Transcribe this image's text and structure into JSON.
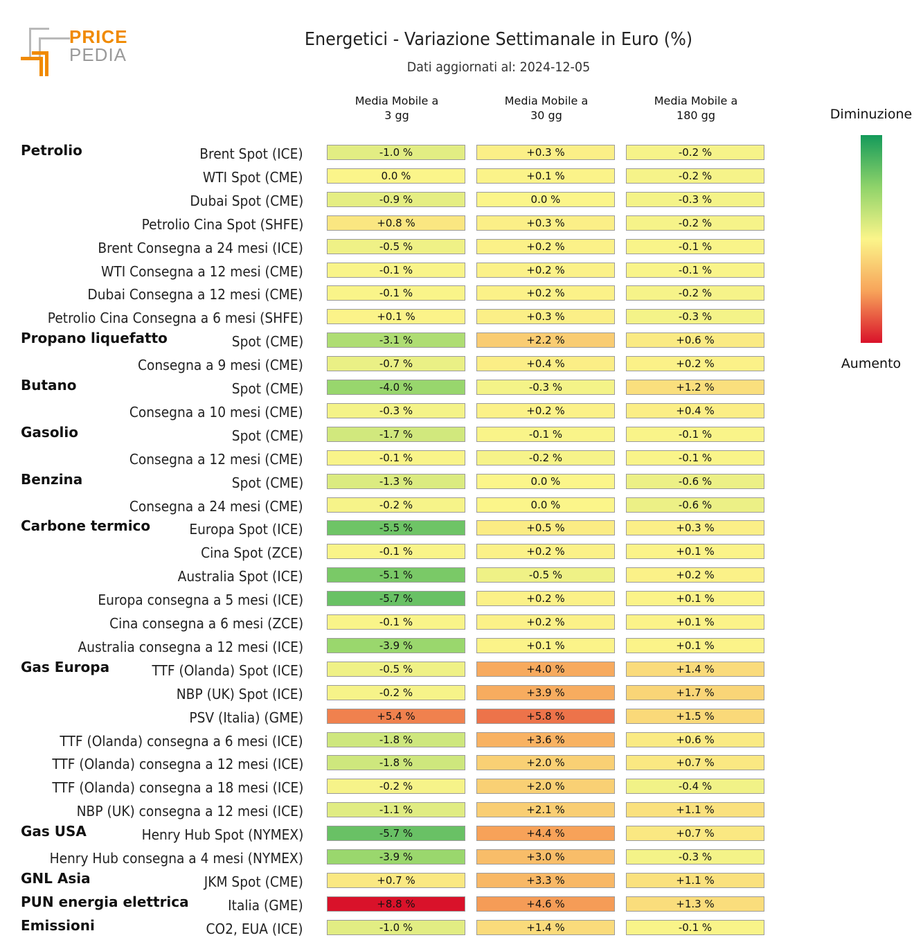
{
  "logo": {
    "line1": "PRICE",
    "line2": "PEDIA"
  },
  "chart_data": {
    "type": "table",
    "title": "Energetici - Variazione Settimanale in Euro (%)",
    "subtitle": "Dati aggiornati al: 2024-12-05",
    "columns": [
      "Media Mobile a 3 gg",
      "Media Mobile a 30 gg",
      "Media Mobile a 180 gg"
    ],
    "column_lines": [
      [
        "Media Mobile a",
        "3 gg"
      ],
      [
        "Media Mobile a",
        "30 gg"
      ],
      [
        "Media Mobile a",
        "180 gg"
      ]
    ],
    "legend": {
      "top": "Diminuzione",
      "bottom": "Aumento",
      "colors": [
        "#149a5a",
        "#8fd36a",
        "#fbf58a",
        "#f7a45a",
        "#d9122a"
      ]
    },
    "rows": [
      {
        "group": "Petrolio",
        "label": "Brent Spot (ICE)",
        "values": [
          "-1.0 %",
          "+0.3 %",
          "-0.2 %"
        ]
      },
      {
        "group": "",
        "label": "WTI Spot (CME)",
        "values": [
          "0.0 %",
          "+0.1 %",
          "-0.2 %"
        ]
      },
      {
        "group": "",
        "label": "Dubai Spot (CME)",
        "values": [
          "-0.9 %",
          "0.0 %",
          "-0.3 %"
        ]
      },
      {
        "group": "",
        "label": "Petrolio Cina Spot (SHFE)",
        "values": [
          "+0.8 %",
          "+0.3 %",
          "-0.2 %"
        ]
      },
      {
        "group": "",
        "label": "Brent Consegna a 24 mesi (ICE)",
        "values": [
          "-0.5 %",
          "+0.2 %",
          "-0.1 %"
        ]
      },
      {
        "group": "",
        "label": "WTI Consegna a 12 mesi (CME)",
        "values": [
          "-0.1 %",
          "+0.2 %",
          "-0.1 %"
        ]
      },
      {
        "group": "",
        "label": "Dubai Consegna a 12 mesi (CME)",
        "values": [
          "-0.1 %",
          "+0.2 %",
          "-0.2 %"
        ]
      },
      {
        "group": "",
        "label": "Petrolio Cina Consegna a 6 mesi (SHFE)",
        "values": [
          "+0.1 %",
          "+0.3 %",
          "-0.3 %"
        ]
      },
      {
        "group": "Propano liquefatto",
        "label": "Spot (CME)",
        "values": [
          "-3.1 %",
          "+2.2 %",
          "+0.6 %"
        ]
      },
      {
        "group": "",
        "label": "Consegna a 9 mesi (CME)",
        "values": [
          "-0.7 %",
          "+0.4 %",
          "+0.2 %"
        ]
      },
      {
        "group": "Butano",
        "label": "Spot (CME)",
        "values": [
          "-4.0 %",
          "-0.3 %",
          "+1.2 %"
        ]
      },
      {
        "group": "",
        "label": "Consegna a 10 mesi (CME)",
        "values": [
          "-0.3 %",
          "+0.2 %",
          "+0.4 %"
        ]
      },
      {
        "group": "Gasolio",
        "label": "Spot (CME)",
        "values": [
          "-1.7 %",
          "-0.1 %",
          "-0.1 %"
        ]
      },
      {
        "group": "",
        "label": "Consegna a 12 mesi (CME)",
        "values": [
          "-0.1 %",
          "-0.2 %",
          "-0.1 %"
        ]
      },
      {
        "group": "Benzina",
        "label": "Spot (CME)",
        "values": [
          "-1.3 %",
          "0.0 %",
          "-0.6 %"
        ]
      },
      {
        "group": "",
        "label": "Consegna a 24 mesi (CME)",
        "values": [
          "-0.2 %",
          "0.0 %",
          "-0.6 %"
        ]
      },
      {
        "group": "Carbone termico",
        "label": "Europa Spot (ICE)",
        "values": [
          "-5.5 %",
          "+0.5 %",
          "+0.3 %"
        ]
      },
      {
        "group": "",
        "label": "Cina Spot (ZCE)",
        "values": [
          "-0.1 %",
          "+0.2 %",
          "+0.1 %"
        ]
      },
      {
        "group": "",
        "label": "Australia Spot (ICE)",
        "values": [
          "-5.1 %",
          "-0.5 %",
          "+0.2 %"
        ]
      },
      {
        "group": "",
        "label": "Europa consegna a 5 mesi (ICE)",
        "values": [
          "-5.7 %",
          "+0.2 %",
          "+0.1 %"
        ]
      },
      {
        "group": "",
        "label": "Cina consegna a 6 mesi (ZCE)",
        "values": [
          "-0.1 %",
          "+0.2 %",
          "+0.1 %"
        ]
      },
      {
        "group": "",
        "label": "Australia consegna a 12 mesi (ICE)",
        "values": [
          "-3.9 %",
          "+0.1 %",
          "+0.1 %"
        ]
      },
      {
        "group": "Gas Europa",
        "label": "TTF (Olanda) Spot (ICE)",
        "values": [
          "-0.5 %",
          "+4.0 %",
          "+1.4 %"
        ]
      },
      {
        "group": "",
        "label": "NBP (UK) Spot (ICE)",
        "values": [
          "-0.2 %",
          "+3.9 %",
          "+1.7 %"
        ]
      },
      {
        "group": "",
        "label": "PSV (Italia) (GME)",
        "values": [
          "+5.4 %",
          "+5.8 %",
          "+1.5 %"
        ]
      },
      {
        "group": "",
        "label": "TTF (Olanda) consegna a 6 mesi (ICE)",
        "values": [
          "-1.8 %",
          "+3.6 %",
          "+0.6 %"
        ]
      },
      {
        "group": "",
        "label": "TTF (Olanda) consegna a 12 mesi (ICE)",
        "values": [
          "-1.8 %",
          "+2.0 %",
          "+0.7 %"
        ]
      },
      {
        "group": "",
        "label": "TTF (Olanda) consegna a 18 mesi (ICE)",
        "values": [
          "-0.2 %",
          "+2.0 %",
          "-0.4 %"
        ]
      },
      {
        "group": "",
        "label": "NBP (UK) consegna a 12 mesi (ICE)",
        "values": [
          "-1.1 %",
          "+2.1 %",
          "+1.1 %"
        ]
      },
      {
        "group": "Gas USA",
        "label": "Henry Hub Spot (NYMEX)",
        "values": [
          "-5.7 %",
          "+4.4 %",
          "+0.7 %"
        ]
      },
      {
        "group": "",
        "label": "Henry Hub consegna a 4 mesi (NYMEX)",
        "values": [
          "-3.9 %",
          "+3.0 %",
          "-0.3 %"
        ]
      },
      {
        "group": "GNL Asia",
        "label": "JKM Spot (CME)",
        "values": [
          "+0.7 %",
          "+3.3 %",
          "+1.1 %"
        ]
      },
      {
        "group": "PUN energia elettrica",
        "label": "Italia (GME)",
        "values": [
          "+8.8 %",
          "+4.6 %",
          "+1.3 %"
        ]
      },
      {
        "group": "Emissioni",
        "label": "CO2, EUA (ICE)",
        "values": [
          "-1.0 %",
          "+1.4 %",
          "-0.1 %"
        ]
      }
    ]
  }
}
